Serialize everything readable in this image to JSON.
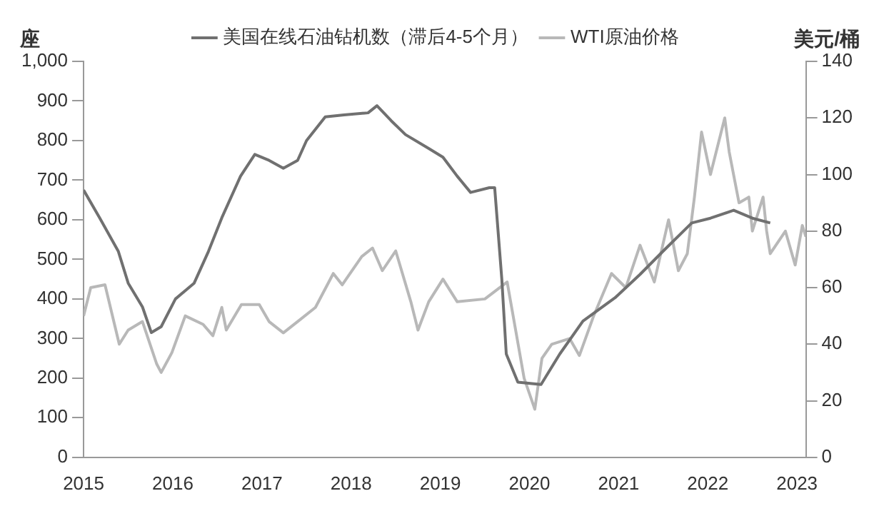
{
  "chart_data": {
    "type": "line",
    "ylabel": "座",
    "y2label": "美元/桶",
    "legend": "top",
    "grid": false,
    "marker": "none",
    "line_style": "solid",
    "xlim": [
      2015,
      2023.1
    ],
    "xticks": [
      2015,
      2016,
      2017,
      2018,
      2019,
      2020,
      2021,
      2022,
      2023
    ],
    "ylim": [
      0,
      1000
    ],
    "yticks": [
      0,
      100,
      200,
      300,
      400,
      500,
      600,
      700,
      800,
      900,
      {
        "value": 1000,
        "label": "1,000"
      }
    ],
    "y2lim": [
      0,
      140
    ],
    "y2ticks": [
      0,
      20,
      40,
      60,
      80,
      100,
      120,
      140
    ],
    "series": [
      {
        "name": "美国在线石油钻机数（滞后4-5个月）",
        "color": "#707070",
        "x": [
          2015.0,
          2015.18,
          2015.39,
          2015.5,
          2015.66,
          2015.76,
          2015.87,
          2016.03,
          2016.24,
          2016.4,
          2016.55,
          2016.76,
          2016.92,
          2017.08,
          2017.24,
          2017.4,
          2017.5,
          2017.71,
          2017.92,
          2018.19,
          2018.29,
          2018.45,
          2018.61,
          2018.87,
          2019.03,
          2019.19,
          2019.34,
          2019.55,
          2019.61,
          2019.69,
          2019.74,
          2019.87,
          2020.13,
          2020.34,
          2020.6,
          2020.96,
          2021.24,
          2021.5,
          2021.82,
          2022.03,
          2022.29,
          2022.5,
          2022.7
        ],
        "values": [
          675,
          605,
          520,
          440,
          380,
          315,
          330,
          400,
          440,
          520,
          605,
          710,
          765,
          750,
          730,
          750,
          800,
          860,
          865,
          870,
          888,
          850,
          815,
          780,
          758,
          710,
          669,
          681,
          681,
          450,
          261,
          190,
          184,
          261,
          344,
          403,
          462,
          521,
          592,
          604,
          624,
          604,
          592
        ]
      },
      {
        "name": "WTI原油价格",
        "color": "#b8b8b8",
        "axis": "y2",
        "x": [
          2015.0,
          2015.08,
          2015.24,
          2015.4,
          2015.5,
          2015.66,
          2015.82,
          2015.87,
          2015.99,
          2016.14,
          2016.34,
          2016.45,
          2016.55,
          2016.6,
          2016.77,
          2016.97,
          2017.08,
          2017.24,
          2017.4,
          2017.6,
          2017.8,
          2017.9,
          2018.12,
          2018.24,
          2018.35,
          2018.5,
          2018.67,
          2018.75,
          2018.87,
          2019.03,
          2019.19,
          2019.5,
          2019.75,
          2019.94,
          2020.06,
          2020.14,
          2020.25,
          2020.45,
          2020.56,
          2020.72,
          2020.92,
          2021.08,
          2021.24,
          2021.4,
          2021.56,
          2021.67,
          2021.77,
          2021.85,
          2021.93,
          2022.03,
          2022.19,
          2022.24,
          2022.35,
          2022.46,
          2022.5,
          2022.62,
          2022.66,
          2022.7,
          2022.87,
          2022.98,
          2023.06,
          2023.1
        ],
        "values": [
          50,
          60,
          61,
          40,
          45,
          48,
          33,
          30,
          37,
          50,
          47,
          43,
          53,
          45,
          54,
          54,
          48,
          44,
          48,
          53,
          65,
          61,
          71,
          74,
          66,
          73,
          55,
          45,
          55,
          63,
          55,
          56,
          62,
          28,
          17,
          35,
          40,
          42,
          36,
          50,
          65,
          60,
          75,
          62,
          84,
          66,
          72,
          92,
          115,
          100,
          120,
          108,
          90,
          92,
          80,
          92,
          80,
          72,
          80,
          68,
          82,
          78
        ]
      }
    ]
  }
}
